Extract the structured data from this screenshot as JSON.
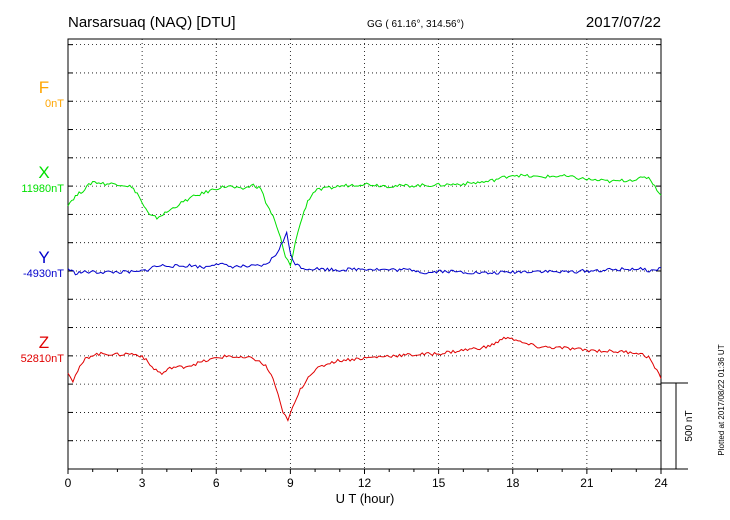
{
  "header": {
    "station": "Narsarsuaq (NAQ)  [DTU]",
    "coords": "GG ( 61.16°, 314.56°)",
    "date": "2017/07/22"
  },
  "footer": {
    "plotted": "Plotted at 2017/08/22 01:36 UT"
  },
  "chart_data": {
    "type": "line",
    "xlabel": "U T (hour)",
    "xlim": [
      0,
      24
    ],
    "xticks": [
      0,
      3,
      6,
      9,
      12,
      15,
      18,
      21,
      24
    ],
    "ylim_nT": [
      -1500,
      2300
    ],
    "grid": true,
    "scale_bar": {
      "label": "500 nT",
      "value": 500
    },
    "series": [
      {
        "name": "F",
        "baseline_label": "0nT",
        "baseline_offset": 1750,
        "color": "#ffa500",
        "points": []
      },
      {
        "name": "X",
        "baseline_label": "11980nT",
        "baseline_offset": 1000,
        "color": "#00e000",
        "points": [
          [
            0,
            -160
          ],
          [
            0.3,
            -90
          ],
          [
            0.6,
            -40
          ],
          [
            1.0,
            40
          ],
          [
            1.5,
            20
          ],
          [
            2.0,
            20
          ],
          [
            2.5,
            0
          ],
          [
            2.8,
            -60
          ],
          [
            3.0,
            -150
          ],
          [
            3.3,
            -260
          ],
          [
            3.6,
            -280
          ],
          [
            4.0,
            -230
          ],
          [
            4.5,
            -160
          ],
          [
            5.0,
            -100
          ],
          [
            5.5,
            -60
          ],
          [
            6.0,
            -20
          ],
          [
            6.5,
            0
          ],
          [
            7.0,
            -30
          ],
          [
            7.5,
            10
          ],
          [
            7.8,
            -20
          ],
          [
            8.0,
            -140
          ],
          [
            8.3,
            -270
          ],
          [
            8.6,
            -460
          ],
          [
            8.8,
            -630
          ],
          [
            9.0,
            -700
          ],
          [
            9.2,
            -500
          ],
          [
            9.4,
            -330
          ],
          [
            9.7,
            -130
          ],
          [
            10.0,
            -40
          ],
          [
            10.5,
            -20
          ],
          [
            11.0,
            0
          ],
          [
            11.5,
            10
          ],
          [
            12,
            20
          ],
          [
            13,
            0
          ],
          [
            14,
            5
          ],
          [
            15,
            10
          ],
          [
            16,
            20
          ],
          [
            17,
            40
          ],
          [
            18,
            100
          ],
          [
            19,
            80
          ],
          [
            20,
            90
          ],
          [
            21,
            60
          ],
          [
            22,
            40
          ],
          [
            23,
            60
          ],
          [
            23.5,
            80
          ],
          [
            24,
            -80
          ]
        ]
      },
      {
        "name": "Y",
        "baseline_label": "-4930nT",
        "baseline_offset": 250,
        "color": "#0000cc",
        "points": [
          [
            0,
            20
          ],
          [
            0.3,
            -20
          ],
          [
            0.6,
            -10
          ],
          [
            1,
            -10
          ],
          [
            2,
            -10
          ],
          [
            2.8,
            -10
          ],
          [
            3.2,
            10
          ],
          [
            3.5,
            40
          ],
          [
            4,
            50
          ],
          [
            4.5,
            40
          ],
          [
            5,
            50
          ],
          [
            5.5,
            30
          ],
          [
            6,
            70
          ],
          [
            6.5,
            40
          ],
          [
            7,
            40
          ],
          [
            7.5,
            40
          ],
          [
            8,
            50
          ],
          [
            8.4,
            140
          ],
          [
            8.7,
            260
          ],
          [
            8.85,
            330
          ],
          [
            9.0,
            160
          ],
          [
            9.2,
            60
          ],
          [
            9.6,
            20
          ],
          [
            10,
            20
          ],
          [
            11,
            10
          ],
          [
            12,
            20
          ],
          [
            13,
            10
          ],
          [
            14,
            10
          ],
          [
            14.5,
            -20
          ],
          [
            15,
            0
          ],
          [
            16,
            -10
          ],
          [
            17,
            -20
          ],
          [
            18,
            -10
          ],
          [
            19,
            0
          ],
          [
            20,
            -10
          ],
          [
            21,
            0
          ],
          [
            22,
            10
          ],
          [
            23,
            20
          ],
          [
            23.7,
            0
          ],
          [
            24,
            30
          ]
        ]
      },
      {
        "name": "Z",
        "baseline_label": "52810nT",
        "baseline_offset": -500,
        "color": "#e00000",
        "points": [
          [
            0,
            -140
          ],
          [
            0.2,
            -220
          ],
          [
            0.4,
            -130
          ],
          [
            0.7,
            -30
          ],
          [
            1,
            10
          ],
          [
            1.5,
            20
          ],
          [
            2,
            10
          ],
          [
            2.5,
            20
          ],
          [
            3,
            0
          ],
          [
            3.4,
            -100
          ],
          [
            3.8,
            -160
          ],
          [
            4.2,
            -100
          ],
          [
            4.6,
            -100
          ],
          [
            5,
            -80
          ],
          [
            5.5,
            -50
          ],
          [
            6,
            -20
          ],
          [
            6.5,
            0
          ],
          [
            7,
            -20
          ],
          [
            7.5,
            -20
          ],
          [
            8,
            -90
          ],
          [
            8.3,
            -200
          ],
          [
            8.5,
            -350
          ],
          [
            8.7,
            -510
          ],
          [
            8.9,
            -560
          ],
          [
            9.1,
            -460
          ],
          [
            9.4,
            -300
          ],
          [
            9.8,
            -160
          ],
          [
            10.2,
            -100
          ],
          [
            10.6,
            -60
          ],
          [
            11,
            -40
          ],
          [
            11.5,
            -30
          ],
          [
            12,
            -20
          ],
          [
            13,
            0
          ],
          [
            14,
            10
          ],
          [
            15,
            20
          ],
          [
            16,
            50
          ],
          [
            17,
            80
          ],
          [
            17.8,
            170
          ],
          [
            18.3,
            120
          ],
          [
            19,
            80
          ],
          [
            20,
            70
          ],
          [
            21,
            50
          ],
          [
            22,
            40
          ],
          [
            23,
            30
          ],
          [
            23.5,
            -10
          ],
          [
            24,
            -200
          ]
        ]
      }
    ]
  }
}
